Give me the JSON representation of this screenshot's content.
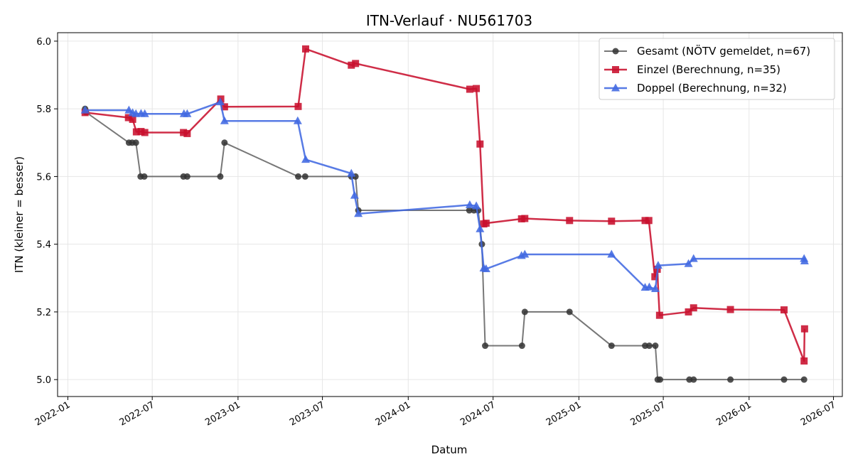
{
  "chart_data": {
    "type": "line",
    "title": "ITN-Verlauf · NU561703",
    "xlabel": "Datum",
    "ylabel": "ITN  (kleiner = besser)",
    "x_type": "date",
    "xlim": [
      "2021-12-10",
      "2026-07-20"
    ],
    "ylim": [
      4.95,
      6.025
    ],
    "xticks": [
      "2022-01",
      "2022-07",
      "2023-01",
      "2023-07",
      "2024-01",
      "2024-07",
      "2025-01",
      "2025-07",
      "2026-01",
      "2026-07"
    ],
    "yticks": [
      "5.0",
      "5.2",
      "5.4",
      "5.6",
      "5.8",
      "6.0"
    ],
    "grid": true,
    "legend_position": "top-right",
    "series": [
      {
        "name": "Gesamt (NÖTV gemeldet, n=67)",
        "color": "#555555",
        "marker": "circle",
        "points": [
          [
            "2022-02-07",
            5.8
          ],
          [
            "2022-02-09",
            5.79
          ],
          [
            "2022-05-12",
            5.7
          ],
          [
            "2022-05-19",
            5.7
          ],
          [
            "2022-05-27",
            5.7
          ],
          [
            "2022-06-06",
            5.6
          ],
          [
            "2022-06-14",
            5.6
          ],
          [
            "2022-09-06",
            5.6
          ],
          [
            "2022-09-14",
            5.6
          ],
          [
            "2022-11-24",
            5.6
          ],
          [
            "2022-12-03",
            5.7
          ],
          [
            "2023-05-10",
            5.6
          ],
          [
            "2023-05-25",
            5.6
          ],
          [
            "2023-09-01",
            5.6
          ],
          [
            "2023-09-10",
            5.6
          ],
          [
            "2023-09-16",
            5.5
          ],
          [
            "2024-05-11",
            5.5
          ],
          [
            "2024-05-21",
            5.5
          ],
          [
            "2024-05-30",
            5.5
          ],
          [
            "2024-06-07",
            5.4
          ],
          [
            "2024-06-14",
            5.1
          ],
          [
            "2024-09-01",
            5.1
          ],
          [
            "2024-09-07",
            5.2
          ],
          [
            "2024-12-12",
            5.2
          ],
          [
            "2025-03-12",
            5.1
          ],
          [
            "2025-05-23",
            5.1
          ],
          [
            "2025-06-01",
            5.1
          ],
          [
            "2025-06-14",
            5.1
          ],
          [
            "2025-06-19",
            5.0
          ],
          [
            "2025-06-24",
            5.0
          ],
          [
            "2025-08-26",
            5.0
          ],
          [
            "2025-09-04",
            5.0
          ],
          [
            "2025-11-22",
            5.0
          ],
          [
            "2026-03-17",
            5.0
          ],
          [
            "2026-04-29",
            5.0
          ]
        ]
      },
      {
        "name": "Einzel (Berechnung, n=35)",
        "color": "#c8102e",
        "marker": "square",
        "points": [
          [
            "2022-02-07",
            5.789
          ],
          [
            "2022-05-11",
            5.774
          ],
          [
            "2022-05-20",
            5.769
          ],
          [
            "2022-05-28",
            5.732
          ],
          [
            "2022-06-07",
            5.733
          ],
          [
            "2022-06-15",
            5.73
          ],
          [
            "2022-09-06",
            5.73
          ],
          [
            "2022-09-14",
            5.727
          ],
          [
            "2022-11-25",
            5.829
          ],
          [
            "2022-12-03",
            5.806
          ],
          [
            "2023-05-10",
            5.807
          ],
          [
            "2023-05-26",
            5.977
          ],
          [
            "2023-09-01",
            5.929
          ],
          [
            "2023-09-10",
            5.934
          ],
          [
            "2024-05-12",
            5.858
          ],
          [
            "2024-05-26",
            5.86
          ],
          [
            "2024-06-03",
            5.696
          ],
          [
            "2024-06-11",
            5.46
          ],
          [
            "2024-06-16",
            5.462
          ],
          [
            "2024-08-31",
            5.475
          ],
          [
            "2024-09-07",
            5.476
          ],
          [
            "2024-12-12",
            5.47
          ],
          [
            "2025-03-12",
            5.468
          ],
          [
            "2025-05-23",
            5.47
          ],
          [
            "2025-05-31",
            5.47
          ],
          [
            "2025-06-13",
            5.304
          ],
          [
            "2025-06-18",
            5.326
          ],
          [
            "2025-06-23",
            5.19
          ],
          [
            "2025-08-24",
            5.2
          ],
          [
            "2025-09-04",
            5.212
          ],
          [
            "2025-11-22",
            5.207
          ],
          [
            "2026-03-17",
            5.206
          ],
          [
            "2026-04-29",
            5.055
          ],
          [
            "2026-04-30",
            5.15
          ]
        ]
      },
      {
        "name": "Doppel (Berechnung, n=32)",
        "color": "#4169e1",
        "marker": "triangle",
        "points": [
          [
            "2022-02-07",
            5.796
          ],
          [
            "2022-05-12",
            5.796
          ],
          [
            "2022-05-20",
            5.788
          ],
          [
            "2022-05-27",
            5.785
          ],
          [
            "2022-06-07",
            5.786
          ],
          [
            "2022-06-15",
            5.785
          ],
          [
            "2022-09-07",
            5.785
          ],
          [
            "2022-09-14",
            5.785
          ],
          [
            "2022-11-24",
            5.82
          ],
          [
            "2022-12-03",
            5.764
          ],
          [
            "2023-05-09",
            5.764
          ],
          [
            "2023-05-26",
            5.65
          ],
          [
            "2023-09-01",
            5.609
          ],
          [
            "2023-09-08",
            5.544
          ],
          [
            "2023-09-16",
            5.49
          ],
          [
            "2024-05-12",
            5.516
          ],
          [
            "2024-05-26",
            5.513
          ],
          [
            "2024-06-03",
            5.445
          ],
          [
            "2024-06-11",
            5.329
          ],
          [
            "2024-06-16",
            5.327
          ],
          [
            "2024-08-31",
            5.366
          ],
          [
            "2024-09-07",
            5.37
          ],
          [
            "2025-03-12",
            5.37
          ],
          [
            "2025-05-23",
            5.272
          ],
          [
            "2025-06-01",
            5.273
          ],
          [
            "2025-06-14",
            5.268
          ],
          [
            "2025-06-20",
            5.337
          ],
          [
            "2025-08-24",
            5.342
          ],
          [
            "2025-09-04",
            5.357
          ],
          [
            "2026-04-29",
            5.357
          ],
          [
            "2026-04-30",
            5.35
          ]
        ]
      }
    ]
  }
}
